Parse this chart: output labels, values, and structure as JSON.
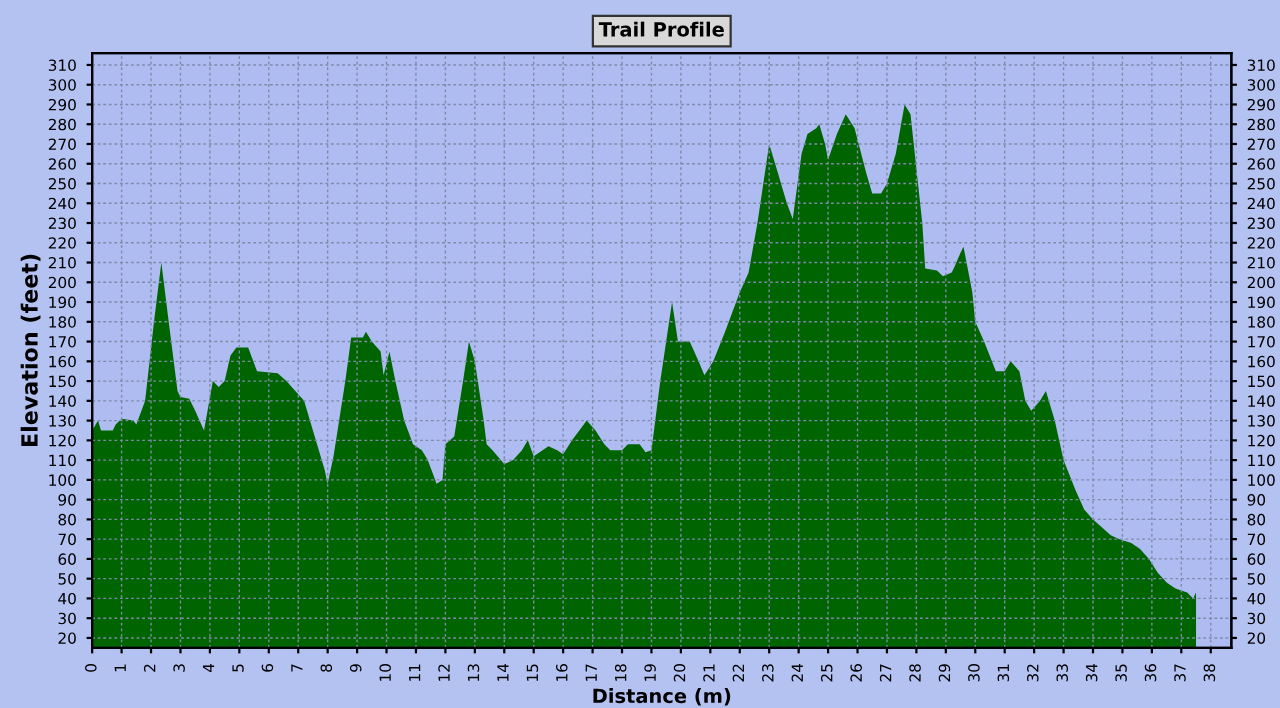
{
  "chart_data": {
    "type": "area",
    "title": "Trail Profile",
    "xlabel": "Distance (m)",
    "ylabel": "Elevation (feet)",
    "xlim": [
      0,
      38.7
    ],
    "ylim": [
      15,
      316
    ],
    "y2lim": [
      15,
      316
    ],
    "xticks": [
      0,
      1,
      2,
      3,
      4,
      5,
      6,
      7,
      8,
      9,
      10,
      11,
      12,
      13,
      14,
      15,
      16,
      17,
      18,
      19,
      20,
      21,
      22,
      23,
      24,
      25,
      26,
      27,
      28,
      29,
      30,
      31,
      32,
      33,
      34,
      35,
      36,
      37,
      38
    ],
    "yticks": [
      20,
      30,
      40,
      50,
      60,
      70,
      80,
      90,
      100,
      110,
      120,
      130,
      140,
      150,
      160,
      170,
      180,
      190,
      200,
      210,
      220,
      230,
      240,
      250,
      260,
      270,
      280,
      290,
      300,
      310
    ],
    "y2ticks": [
      20,
      30,
      40,
      50,
      60,
      70,
      80,
      90,
      100,
      110,
      120,
      130,
      140,
      150,
      160,
      170,
      180,
      190,
      200,
      210,
      220,
      230,
      240,
      250,
      260,
      270,
      280,
      290,
      300,
      310
    ],
    "grid": true,
    "series": [
      {
        "color": "#006400",
        "x": [
          0,
          0.2,
          0.3,
          0.7,
          0.8,
          1.0,
          1.4,
          1.5,
          1.8,
          2.1,
          2.35,
          2.6,
          2.9,
          3.0,
          3.3,
          3.5,
          3.8,
          4.1,
          4.3,
          4.5,
          4.7,
          4.9,
          5.3,
          5.6,
          6.3,
          6.6,
          6.9,
          7.2,
          7.5,
          7.9,
          8.0,
          8.2,
          8.6,
          8.8,
          9.2,
          9.3,
          9.5,
          9.8,
          9.9,
          10.1,
          10.3,
          10.6,
          10.9,
          11.2,
          11.4,
          11.7,
          11.9,
          12.0,
          12.3,
          12.6,
          12.8,
          13.0,
          13.3,
          13.4,
          13.6,
          14.0,
          14.3,
          14.6,
          14.8,
          15.0,
          15.3,
          15.5,
          15.8,
          16.0,
          16.3,
          16.6,
          16.8,
          17.1,
          17.4,
          17.6,
          18.0,
          18.2,
          18.6,
          18.8,
          19.0,
          19.3,
          19.6,
          19.7,
          19.9,
          20.3,
          20.6,
          20.8,
          21.1,
          21.5,
          22.0,
          22.3,
          22.6,
          22.9,
          23.0,
          23.3,
          23.6,
          23.8,
          24.1,
          24.3,
          24.6,
          24.7,
          24.9,
          25.0,
          25.3,
          25.6,
          25.9,
          26.3,
          26.5,
          26.8,
          27.0,
          27.3,
          27.6,
          27.8,
          28.2,
          28.3,
          28.7,
          28.9,
          29.2,
          29.3,
          29.5,
          29.6,
          29.9,
          30.0,
          30.3,
          30.7,
          31.0,
          31.2,
          31.5,
          31.7,
          31.9,
          32.2,
          32.4,
          32.7,
          33.0,
          33.4,
          33.7,
          34.0,
          34.3,
          34.6,
          34.9,
          35.3,
          35.6,
          35.9,
          36.2,
          36.5,
          36.8,
          37.2,
          37.4,
          37.5
        ],
        "values": [
          125,
          130,
          125,
          125,
          128,
          131,
          130,
          128,
          140,
          180,
          210,
          180,
          145,
          142,
          141,
          135,
          125,
          150,
          147,
          150,
          163,
          167,
          167,
          155,
          154,
          150,
          145,
          140,
          125,
          105,
          98,
          112,
          150,
          172,
          172,
          175,
          170,
          165,
          153,
          165,
          150,
          130,
          118,
          115,
          110,
          98,
          100,
          118,
          122,
          150,
          170,
          160,
          130,
          118,
          115,
          108,
          110,
          115,
          120,
          112,
          115,
          117,
          115,
          113,
          120,
          126,
          130,
          125,
          118,
          115,
          115,
          118,
          118,
          114,
          115,
          150,
          180,
          190,
          170,
          170,
          160,
          153,
          160,
          175,
          195,
          205,
          230,
          260,
          270,
          255,
          240,
          232,
          265,
          275,
          278,
          280,
          270,
          262,
          275,
          285,
          278,
          255,
          245,
          245,
          250,
          265,
          290,
          285,
          230,
          207,
          206,
          203,
          205,
          208,
          215,
          218,
          195,
          180,
          170,
          155,
          155,
          160,
          155,
          140,
          135,
          140,
          145,
          130,
          110,
          95,
          85,
          80,
          76,
          72,
          70,
          68,
          65,
          60,
          53,
          48,
          45,
          43,
          40,
          43
        ]
      }
    ]
  }
}
